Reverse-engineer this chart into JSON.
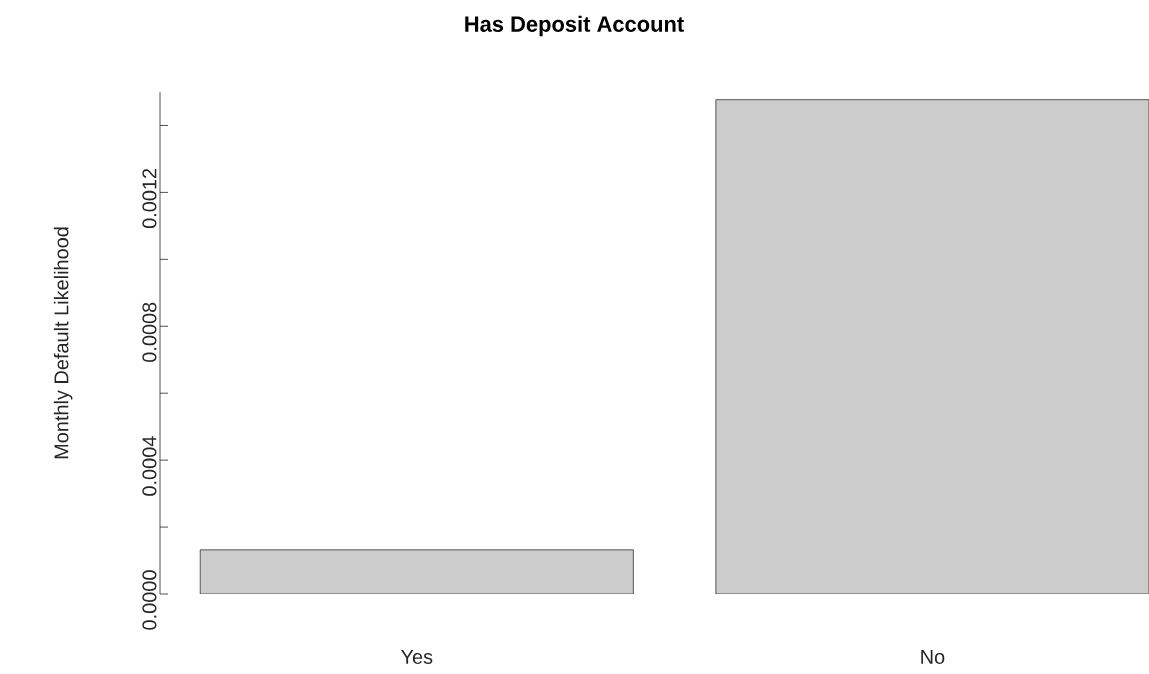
{
  "chart_data": {
    "type": "bar",
    "title": "Has Deposit Account",
    "ylabel": "Monthly Default Likelihood",
    "categories": [
      "Yes",
      "No"
    ],
    "values": [
      0.000132,
      0.001477
    ],
    "color": "#cccccc",
    "ylim": [
      0,
      0.0015
    ],
    "yticks": [
      {
        "value": 0,
        "label": "0.0000"
      },
      {
        "value": 0.0002,
        "label": null
      },
      {
        "value": 0.0004,
        "label": "0.0004"
      },
      {
        "value": 0.0006,
        "label": null
      },
      {
        "value": 0.0008,
        "label": "0.0008"
      },
      {
        "value": 0.001,
        "label": null
      },
      {
        "value": 0.0012,
        "label": "0.0012"
      },
      {
        "value": 0.0014,
        "label": null
      }
    ],
    "grid": false
  }
}
